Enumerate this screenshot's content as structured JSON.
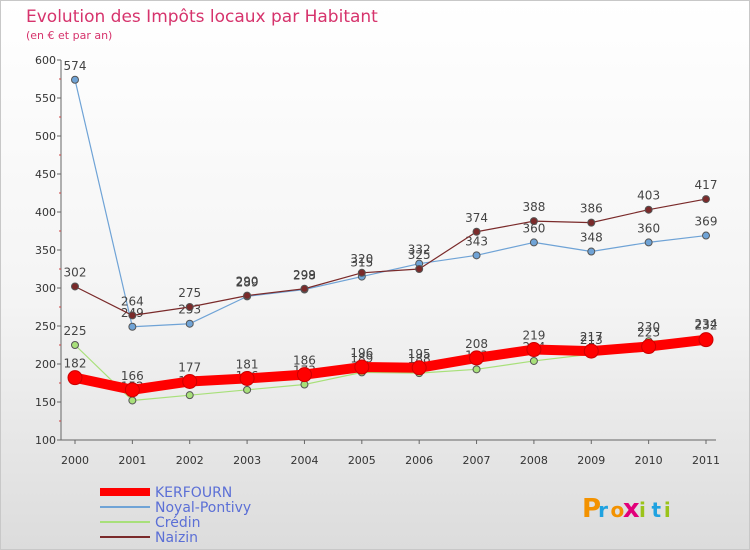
{
  "chart_data": {
    "type": "line",
    "title": "Evolution des Impôts locaux par Habitant",
    "subtitle": "(en € et par an)",
    "xlabel": "",
    "ylabel": "",
    "categories": [
      "2000",
      "2001",
      "2002",
      "2003",
      "2004",
      "2005",
      "2006",
      "2007",
      "2008",
      "2009",
      "2010",
      "2011"
    ],
    "ylim": [
      100,
      600
    ],
    "yticks": [
      "100",
      "150",
      "200",
      "250",
      "300",
      "350",
      "400",
      "450",
      "500",
      "550",
      "600"
    ],
    "grid": false,
    "series": [
      {
        "name": "KERFOURN",
        "color": "#ff0000",
        "values": [
          182,
          166,
          177,
          181,
          186,
          196,
          195,
          208,
          219,
          217,
          223,
          232
        ],
        "labels": [
          "182",
          "166",
          "177",
          "181",
          "186",
          "196",
          "195",
          "208",
          "219",
          "217",
          "223",
          "232"
        ]
      },
      {
        "name": "Noyal-Pontivy",
        "color": "#6fa3d6",
        "values": [
          574,
          249,
          253,
          289,
          298,
          315,
          332,
          343,
          360,
          348,
          360,
          369
        ],
        "labels": [
          "574",
          "249",
          "253",
          "289",
          "298",
          "315",
          "332",
          "343",
          "360",
          "348",
          "360",
          "369"
        ]
      },
      {
        "name": "Crédin",
        "color": "#a8e07a",
        "values": [
          225,
          152,
          159,
          166,
          173,
          189,
          188,
          193,
          204,
          213,
          230,
          234
        ],
        "labels": [
          "225",
          "152",
          "159",
          "166",
          "173",
          "189",
          "188",
          "193",
          "204",
          "213",
          "230",
          "234"
        ]
      },
      {
        "name": "Naizin",
        "color": "#7a2a2a",
        "values": [
          302,
          264,
          275,
          290,
          299,
          320,
          325,
          374,
          388,
          386,
          403,
          417
        ],
        "labels": [
          "302",
          "264",
          "275",
          "290",
          "299",
          "320",
          "325",
          "374",
          "388",
          "386",
          "403",
          "417"
        ]
      }
    ],
    "legend_position": "bottom-left"
  },
  "brand": {
    "letters": [
      "P",
      "r",
      "o",
      "x",
      "i",
      "t",
      "i"
    ],
    "colors": [
      "#f39200",
      "#1fa2e0",
      "#f39200",
      "#e2007a",
      "#9bc31a",
      "#1fa2e0",
      "#9bc31a"
    ]
  },
  "colors": {
    "title": "#d6336c",
    "axis": "#555555"
  }
}
